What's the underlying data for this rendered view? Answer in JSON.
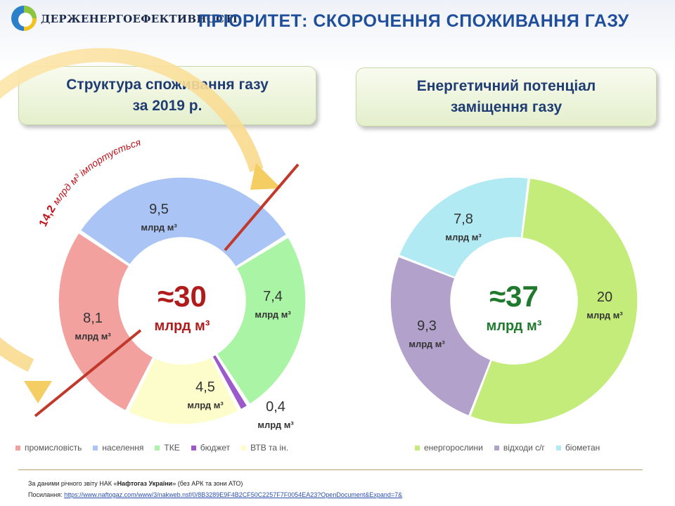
{
  "header": {
    "org_name": "ДЕРЖЕНЕРГОЕФЕКТИВНОСТІ",
    "title": "ПРІОРИТЕТ: СКОРОЧЕННЯ СПОЖИВАННЯ ГАЗУ"
  },
  "boxes": {
    "left_line1": "Структура споживання газу",
    "left_line2": "за 2019 р.",
    "right_line1": "Енергетичний потенціал",
    "right_line2": "заміщення газу"
  },
  "chart_data": [
    {
      "type": "pie",
      "title": "Структура споживання газу за 2019 р.",
      "unit": "млрд м³",
      "total_label": "≈30",
      "total_unit": "млрд м³",
      "categories": [
        "населення",
        "ТКЕ",
        "бюджет",
        "ВТВ та ін.",
        "промисловість"
      ],
      "values": [
        9.5,
        7.4,
        0.4,
        4.5,
        8.1
      ],
      "value_labels": [
        "9,5",
        "7,4",
        "0,4",
        "4,5",
        "8,1"
      ],
      "colors": [
        "#a9c4f5",
        "#a9f5a5",
        "#9b59c9",
        "#fdfccb",
        "#f2a19f"
      ],
      "legend": [
        "промисловість",
        "населення",
        "ТКЕ",
        "бюджет",
        "ВТВ та ін."
      ],
      "legend_colors": [
        "#f2a19f",
        "#a9c4f5",
        "#a9f5a5",
        "#9b59c9",
        "#fdfccb"
      ],
      "import_annotation": {
        "value": "14,2",
        "text": "млрд м³ імпортується"
      }
    },
    {
      "type": "pie",
      "title": "Енергетичний потенціал заміщення газу",
      "unit": "млрд м³",
      "total_label": "≈37",
      "total_unit": "млрд м³",
      "categories": [
        "енергорослини",
        "відходи с/г",
        "біометан"
      ],
      "values": [
        20,
        9.3,
        7.8
      ],
      "value_labels": [
        "20",
        "9,3",
        "7,8"
      ],
      "colors": [
        "#c4ec7b",
        "#b1a1cb",
        "#b1eaf3"
      ],
      "legend": [
        "енергорослини",
        "відходи с/г",
        "біометан"
      ],
      "legend_colors": [
        "#c4ec7b",
        "#b1a1cb",
        "#b1eaf3"
      ]
    }
  ],
  "footer": {
    "source_prefix": "За даними річного звіту НАК «",
    "source_bold": "Нафтогаз України",
    "source_suffix": "»  (без АРК та зони АТО)",
    "link_label": "Посилання:",
    "link_url": "https://www.naftogaz.com/www/3/nakweb.nsf/0/8B3289E9F4B2CF50C2257F7F0054EA23?OpenDocument&Expand=7&"
  }
}
